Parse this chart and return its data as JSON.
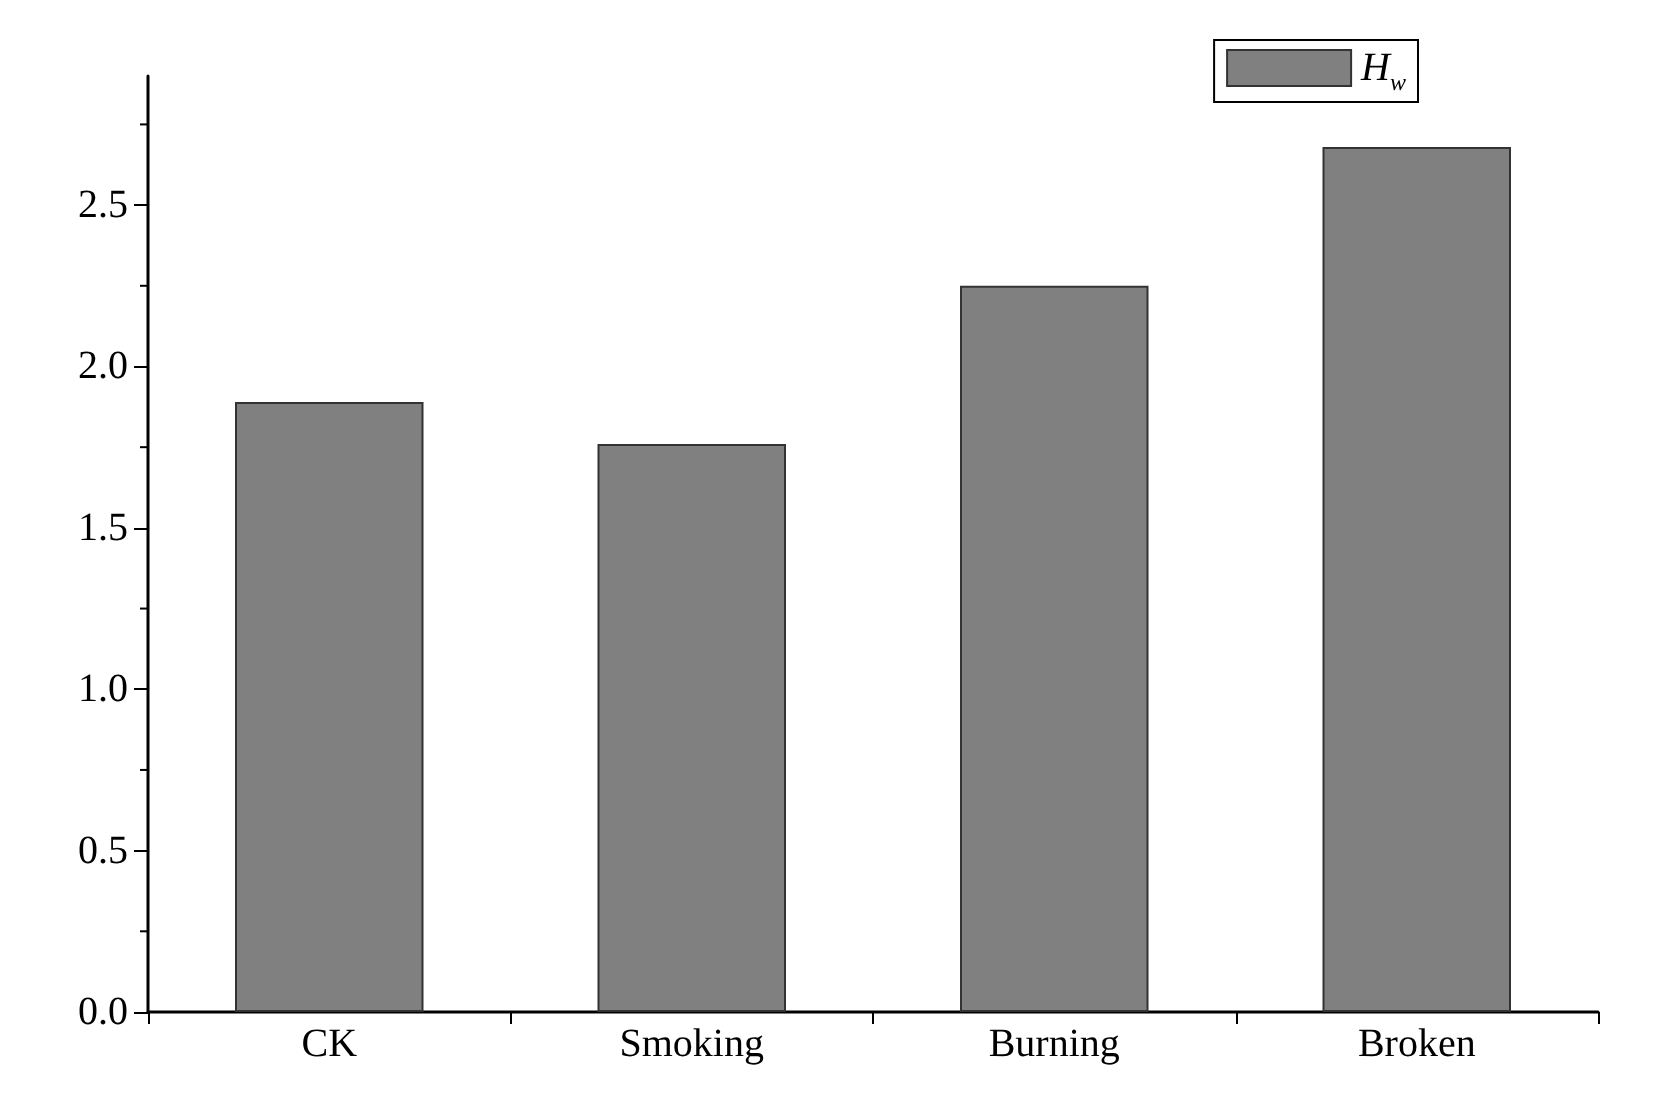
{
  "chart_data": {
    "type": "bar",
    "categories": [
      "CK",
      "Smoking",
      "Burning",
      "Broken"
    ],
    "series": [
      {
        "name": "H$_{w}$",
        "color": "#808080",
        "values": [
          1.89,
          1.76,
          2.25,
          2.68
        ]
      }
    ],
    "ylim": [
      0,
      2.9
    ],
    "yticks": [
      {
        "value": 0,
        "label": "0.0"
      },
      0.5,
      {
        "value": 1,
        "label": "1.0"
      },
      1.5,
      {
        "value": 2,
        "label": "2.0"
      },
      2.5
    ],
    "grid": false,
    "legend": "top right"
  }
}
